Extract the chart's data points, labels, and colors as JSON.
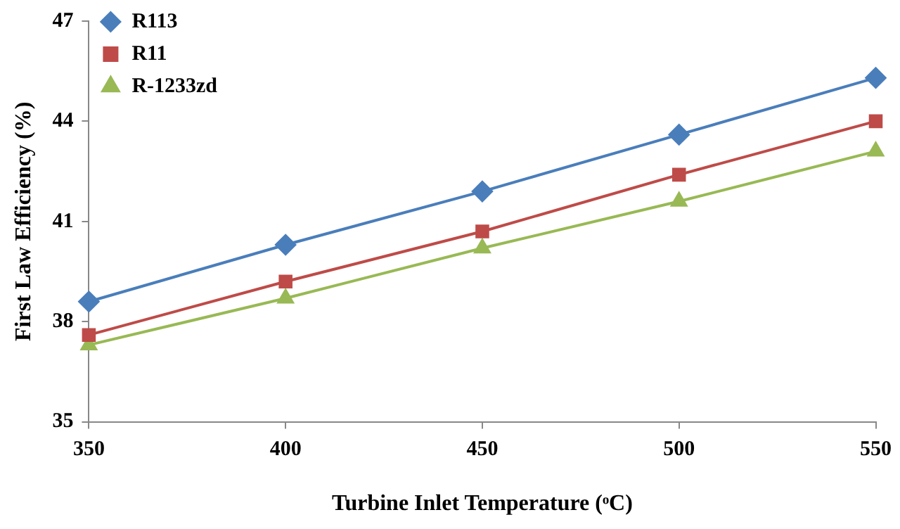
{
  "chart_data": {
    "type": "line",
    "xlabel": "Turbine Inlet Temperature (ᵒC)",
    "ylabel": "First Law Efficiency (%)",
    "x": [
      350,
      400,
      450,
      500,
      550
    ],
    "xlim": [
      350,
      550
    ],
    "xticks": [
      350,
      400,
      450,
      500,
      550
    ],
    "ylim": [
      35,
      47
    ],
    "yticks": [
      35,
      38,
      41,
      44,
      47
    ],
    "grid": false,
    "legend": "top left",
    "line_style": "solid",
    "series": [
      {
        "name": "R113",
        "color": "#4a7ebb",
        "marker": "diamond",
        "values": [
          38.6,
          40.3,
          41.9,
          43.6,
          45.3
        ]
      },
      {
        "name": "R11",
        "color": "#be4b48",
        "marker": "square",
        "values": [
          37.6,
          39.2,
          40.7,
          42.4,
          44.0
        ]
      },
      {
        "name": "R-1233zd",
        "color": "#98b954",
        "marker": "triangle",
        "values": [
          37.3,
          38.7,
          40.2,
          41.6,
          43.1
        ]
      }
    ]
  }
}
